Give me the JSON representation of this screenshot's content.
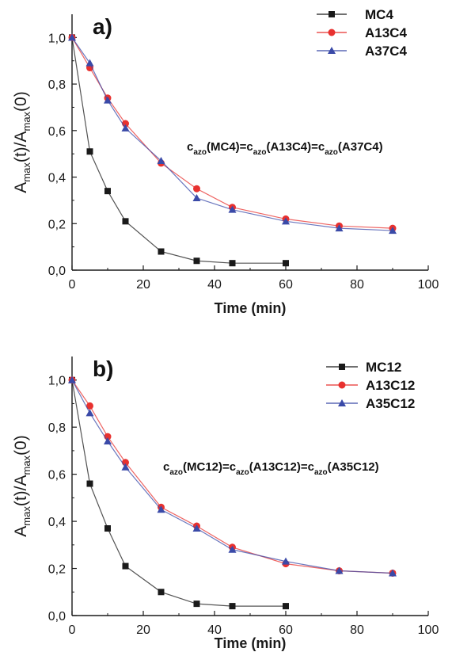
{
  "chart_data": [
    {
      "type": "line",
      "panel_label": "a)",
      "xlabel": "Time (min)",
      "ylabel": {
        "main": "A",
        "sub1": "max",
        "mid": "(t)/A",
        "sub2": "max",
        "tail": "(0)"
      },
      "xlim": [
        0,
        100
      ],
      "ylim": [
        0,
        1.1
      ],
      "xticks": [
        "0",
        "20",
        "40",
        "60",
        "80",
        "100"
      ],
      "yticks": [
        "0,0",
        "0,2",
        "0,4",
        "0,6",
        "0,8",
        "1,0"
      ],
      "legend_position": "top-right",
      "annotation": {
        "parts": [
          {
            "t": "c",
            "sub": false
          },
          {
            "t": "azo",
            "sub": true
          },
          {
            "t": "(MC4)=c",
            "sub": false
          },
          {
            "t": "azo",
            "sub": true
          },
          {
            "t": "(A13C4)=c",
            "sub": false
          },
          {
            "t": "azo",
            "sub": true
          },
          {
            "t": "(A37C4)",
            "sub": false
          }
        ]
      },
      "series": [
        {
          "name": "MC4",
          "color": "#1a1a1a",
          "marker": "square",
          "x": [
            0,
            5,
            10,
            15,
            25,
            35,
            45,
            60
          ],
          "y": [
            1.0,
            0.51,
            0.34,
            0.21,
            0.08,
            0.04,
            0.03,
            0.03
          ]
        },
        {
          "name": "A13C4",
          "color": "#e8312f",
          "marker": "circle",
          "x": [
            0,
            5,
            10,
            15,
            25,
            35,
            45,
            60,
            75,
            90
          ],
          "y": [
            1.0,
            0.87,
            0.74,
            0.63,
            0.46,
            0.35,
            0.27,
            0.22,
            0.19,
            0.18
          ]
        },
        {
          "name": "A37C4",
          "color": "#3a4aa8",
          "marker": "triangle",
          "x": [
            0,
            5,
            10,
            15,
            25,
            35,
            45,
            60,
            75,
            90
          ],
          "y": [
            1.0,
            0.89,
            0.73,
            0.61,
            0.47,
            0.31,
            0.26,
            0.21,
            0.18,
            0.17
          ]
        }
      ]
    },
    {
      "type": "line",
      "panel_label": "b)",
      "xlabel": "Time (min)",
      "ylabel": {
        "main": "A",
        "sub1": "max",
        "mid": "(t)/A",
        "sub2": "max",
        "tail": "(0)"
      },
      "xlim": [
        0,
        100
      ],
      "ylim": [
        0,
        1.1
      ],
      "xticks": [
        "0",
        "20",
        "40",
        "60",
        "80",
        "100"
      ],
      "yticks": [
        "0,0",
        "0,2",
        "0,4",
        "0,6",
        "0,8",
        "1,0"
      ],
      "legend_position": "top-right",
      "annotation": {
        "parts": [
          {
            "t": "c",
            "sub": false
          },
          {
            "t": "azo",
            "sub": true
          },
          {
            "t": "(MC12)=c",
            "sub": false
          },
          {
            "t": "azo",
            "sub": true
          },
          {
            "t": "(A13C12)=c",
            "sub": false
          },
          {
            "t": "azo",
            "sub": true
          },
          {
            "t": "(A35C12)",
            "sub": false
          }
        ]
      },
      "series": [
        {
          "name": "MC12",
          "color": "#1a1a1a",
          "marker": "square",
          "x": [
            0,
            5,
            10,
            15,
            25,
            35,
            45,
            60
          ],
          "y": [
            1.0,
            0.56,
            0.37,
            0.21,
            0.1,
            0.05,
            0.04,
            0.04
          ]
        },
        {
          "name": "A13C12",
          "color": "#e8312f",
          "marker": "circle",
          "x": [
            0,
            5,
            10,
            15,
            25,
            35,
            45,
            60,
            75,
            90
          ],
          "y": [
            1.0,
            0.89,
            0.76,
            0.65,
            0.46,
            0.38,
            0.29,
            0.22,
            0.19,
            0.18
          ]
        },
        {
          "name": "A35C12",
          "color": "#3a4aa8",
          "marker": "triangle",
          "x": [
            0,
            5,
            10,
            15,
            25,
            35,
            45,
            60,
            75,
            90
          ],
          "y": [
            1.0,
            0.86,
            0.74,
            0.63,
            0.45,
            0.37,
            0.28,
            0.23,
            0.19,
            0.18
          ]
        }
      ]
    }
  ]
}
